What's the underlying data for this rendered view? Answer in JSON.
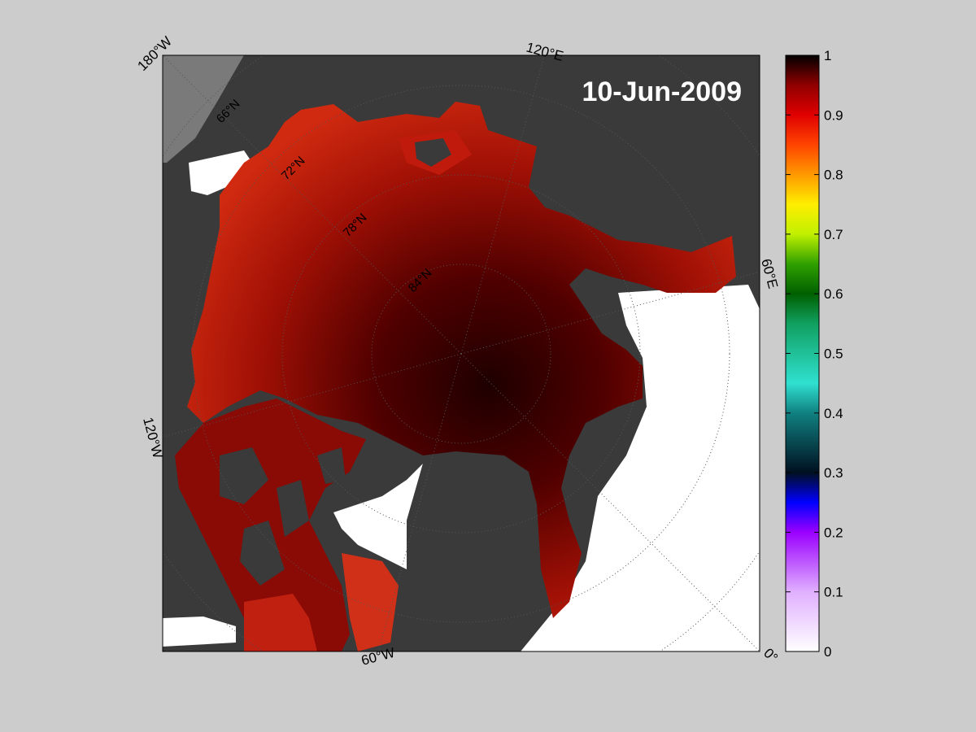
{
  "title": {
    "date": "10-Jun-2009"
  },
  "map": {
    "longitude_labels": [
      "180°W",
      "120°E",
      "60°E",
      "0°",
      "60°W",
      "120°W"
    ],
    "latitude_labels": [
      "66°N",
      "72°N",
      "78°N",
      "84°N"
    ]
  },
  "colorbar": {
    "ticks": [
      "1",
      "0.9",
      "0.8",
      "0.7",
      "0.6",
      "0.5",
      "0.4",
      "0.3",
      "0.2",
      "0.1",
      "0"
    ],
    "range": [
      0,
      1
    ],
    "colors": [
      "#ffffff",
      "#9a00ff",
      "#0000ff",
      "#001020",
      "#20d0c0",
      "#008000",
      "#ffff00",
      "#ff9900",
      "#ff0000",
      "#000000"
    ]
  },
  "colors": {
    "background": "#cccccc",
    "land": "#3a3a3a",
    "ocean_open": "#ffffff",
    "ice": "#b01008"
  }
}
